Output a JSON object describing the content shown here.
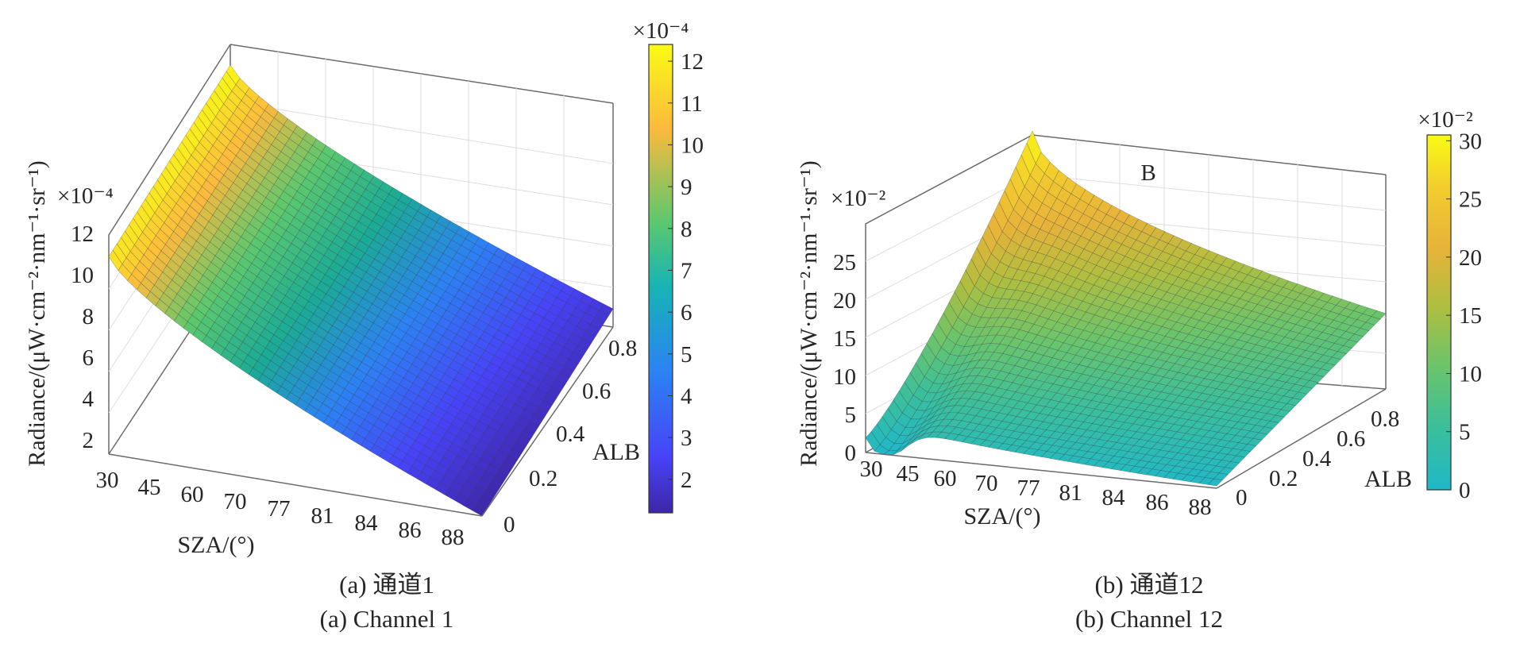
{
  "chart_data": [
    {
      "type": "surface3d",
      "panel": "a",
      "caption_cn": "(a) 通道1",
      "caption_en": "(a) Channel 1",
      "xlabel": "SZA/(°)",
      "ylabel": "ALB",
      "zlabel": "Radiance/(μW·cm⁻²·nm⁻¹·sr⁻¹)",
      "z_exponent_label": "×10⁻⁴",
      "x_ticks": [
        "30",
        "45",
        "60",
        "70",
        "77",
        "81",
        "84",
        "86",
        "88"
      ],
      "y_ticks": [
        "0",
        "0.2",
        "0.4",
        "0.6",
        "0.8"
      ],
      "z_ticks": [
        "2",
        "4",
        "6",
        "8",
        "10",
        "12"
      ],
      "zlim": [
        1.2,
        12.4
      ],
      "colorbar": {
        "exponent_label": "×10⁻⁴",
        "ticks": [
          "2",
          "3",
          "4",
          "5",
          "6",
          "7",
          "8",
          "9",
          "10",
          "11",
          "12"
        ],
        "range": [
          1.2,
          12.4
        ],
        "colormap": [
          "#3e26a8",
          "#4743f8",
          "#2c82f3",
          "#1bab95",
          "#5bc86e",
          "#fbba3d",
          "#f9fb15"
        ]
      },
      "corner_values": {
        "sza30_alb0": 12.0,
        "sza30_alb0.8": 12.4,
        "sza88_alb0": 1.2,
        "sza88_alb0.8": 2.2
      },
      "grid": true
    },
    {
      "type": "surface3d",
      "panel": "b",
      "caption_cn": "(b) 通道12",
      "caption_en": "(b) Channel 12",
      "annotation": "B",
      "xlabel": "SZA/(°)",
      "ylabel": "ALB",
      "zlabel": "Radiance/(μW·cm⁻²·nm⁻¹·sr⁻¹)",
      "z_exponent_label": "×10⁻²",
      "x_ticks": [
        "30",
        "45",
        "60",
        "70",
        "77",
        "81",
        "84",
        "86",
        "88"
      ],
      "y_ticks": [
        "0",
        "0.2",
        "0.4",
        "0.6",
        "0.8"
      ],
      "z_ticks": [
        "0",
        "5",
        "10",
        "15",
        "20",
        "25"
      ],
      "zlim": [
        0,
        30.5
      ],
      "colorbar": {
        "exponent_label": "×10⁻²",
        "ticks": [
          "0",
          "5",
          "10",
          "15",
          "20",
          "25",
          "30"
        ],
        "range": [
          0,
          30.5
        ],
        "colormap": [
          "#1fb8c8",
          "#3cbf9a",
          "#6cc46a",
          "#b0be3f",
          "#e7b33a",
          "#f2cc2e",
          "#f9fb15"
        ]
      },
      "corner_values": {
        "sza30_alb0": 5.0,
        "sza30_alb0.8": 30.5,
        "sza88_alb0": 0.3,
        "sza88_alb0.8": 10.0,
        "sza45_alb0": 0.2
      },
      "grid": true
    }
  ]
}
